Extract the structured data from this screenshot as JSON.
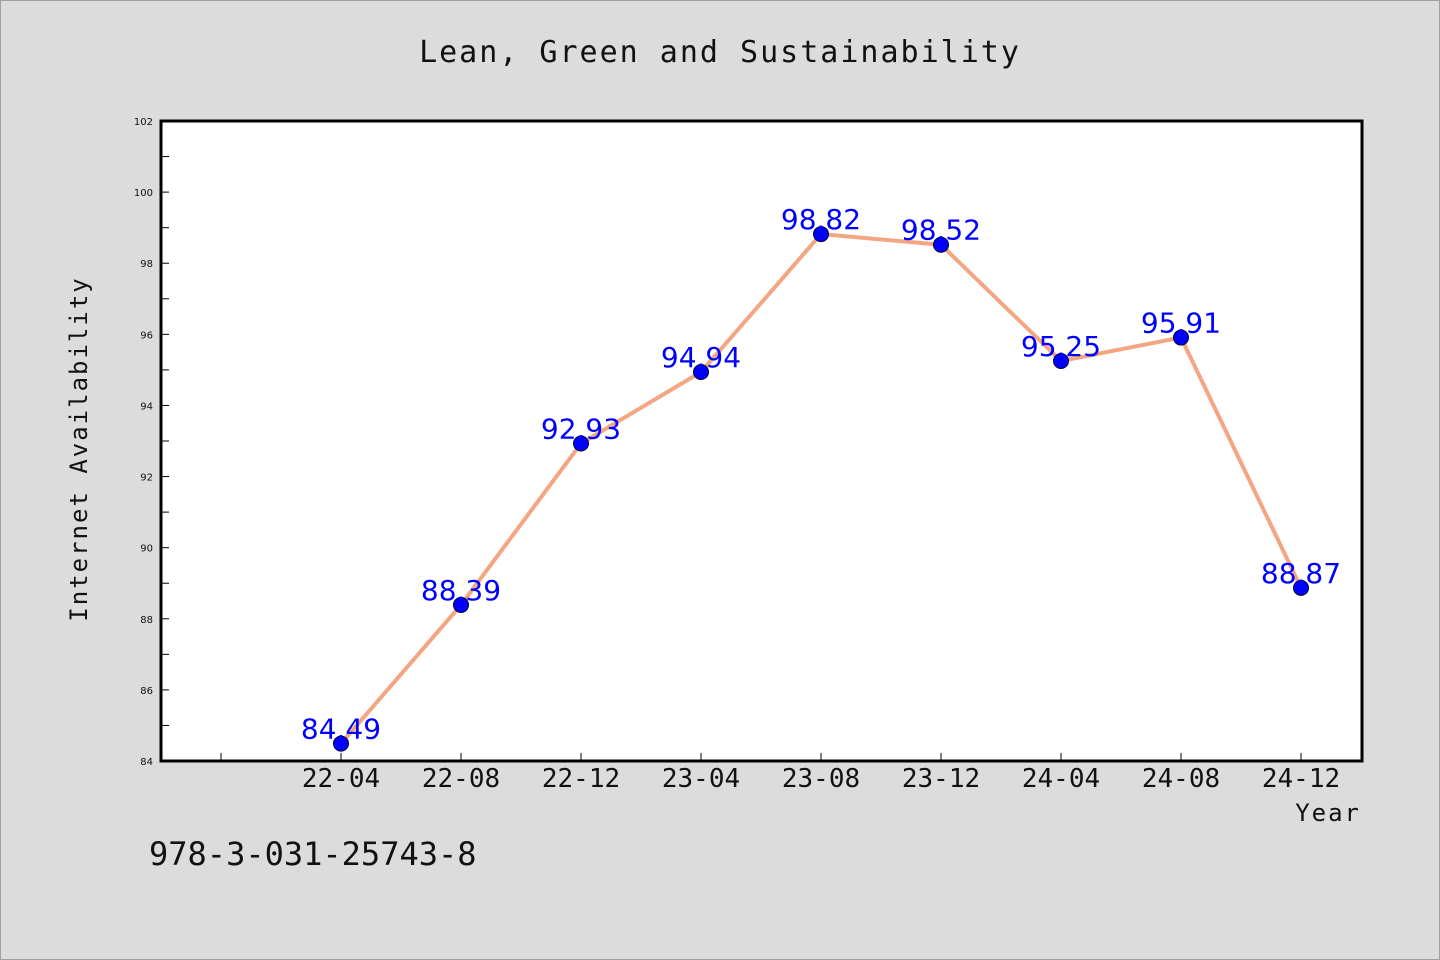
{
  "chart_data": {
    "type": "line",
    "title": "Lean, Green and Sustainability",
    "xlabel": "Year",
    "ylabel": "Internet Availability",
    "categories": [
      "22-04",
      "22-08",
      "22-12",
      "23-04",
      "23-08",
      "23-12",
      "24-04",
      "24-08",
      "24-12"
    ],
    "series": [
      {
        "values": [
          84.49,
          88.39,
          92.93,
          94.94,
          98.82,
          98.52,
          95.25,
          95.91,
          88.87
        ],
        "labels": [
          "84.49",
          "88.39",
          "92.93",
          "94.94",
          "98.82",
          "98.52",
          "95.25",
          "95.91",
          "88.87"
        ]
      }
    ],
    "ylim": [
      84,
      102
    ],
    "yticks": [
      "84",
      "86",
      "88",
      "90",
      "92",
      "94",
      "96",
      "98",
      "100",
      "102"
    ],
    "grid": false,
    "line_color": "#f4a582",
    "marker_color": "#0000ff",
    "label_color": "#0000ff"
  },
  "footer": {
    "code": "978-3-031-25743-8"
  }
}
